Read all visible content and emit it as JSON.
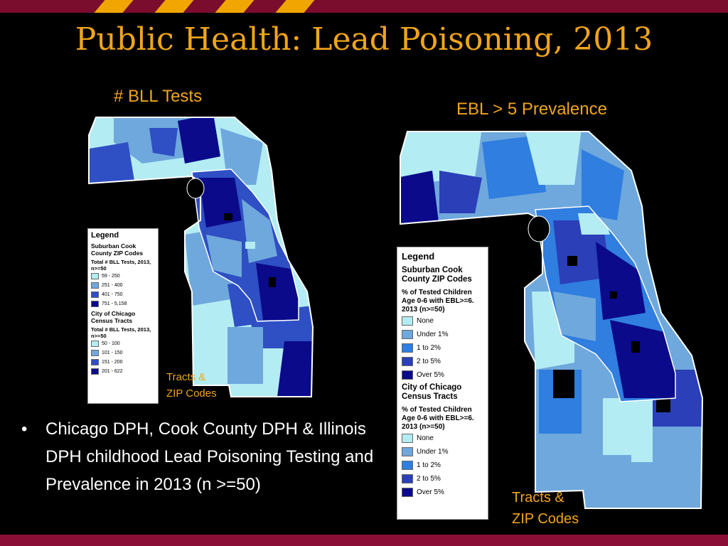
{
  "slide": {
    "title": "Public Health: Lead Poisoning, 2013",
    "bullet": "Chicago DPH, Cook County DPH & Illinois DPH childhood Lead Poisoning Testing and Prevalence in 2013 (n >=50)"
  },
  "left_map": {
    "title": "# BLL Tests",
    "footnote_line1": "Tracts &",
    "footnote_line2": "ZIP Codes",
    "legend": {
      "title": "Legend",
      "section1": "Suburban Cook County ZIP Codes",
      "sub1": "Total # BLL Tests, 2013, n>=50",
      "items1": [
        "59 - 250",
        "251 - 400",
        "401 - 750",
        "751 - 5,158"
      ],
      "section2": "City of Chicago Census Tracts",
      "sub2": "Total # BLL Tests, 2013, n>=50",
      "items2": [
        "50 - 100",
        "101 - 150",
        "151 - 200",
        "201 - 622"
      ]
    }
  },
  "right_map": {
    "title": "EBL > 5 Prevalence",
    "footnote_line1": "Tracts &",
    "footnote_line2": "ZIP Codes",
    "legend": {
      "title": "Legend",
      "section1": "Suburban Cook County ZIP Codes",
      "sub1": "% of Tested Children Age 0-6 with EBL>=6. 2013 (n>=50)",
      "items1": [
        "None",
        "Under 1%",
        "1 to 2%",
        "2 to 5%",
        "Over 5%"
      ],
      "section2": "City of Chicago Census Tracts",
      "sub2": "% of Tested Children Age 0-6 with EBL>=6. 2013 (n>=50)",
      "items2": [
        "None",
        "Under 1%",
        "1 to 2%",
        "2 to 5%",
        "Over 5%"
      ]
    }
  },
  "colors": {
    "brand_maroon": "#7a0c2e",
    "brand_gold": "#f0a51a",
    "ramp4": [
      "#b3ecf2",
      "#6fa8dc",
      "#2f4fc4",
      "#0a0a8a"
    ],
    "ramp5": [
      "#b3ecf2",
      "#6fa8dc",
      "#2f7ee0",
      "#2a3fb8",
      "#0a0a8a"
    ]
  }
}
